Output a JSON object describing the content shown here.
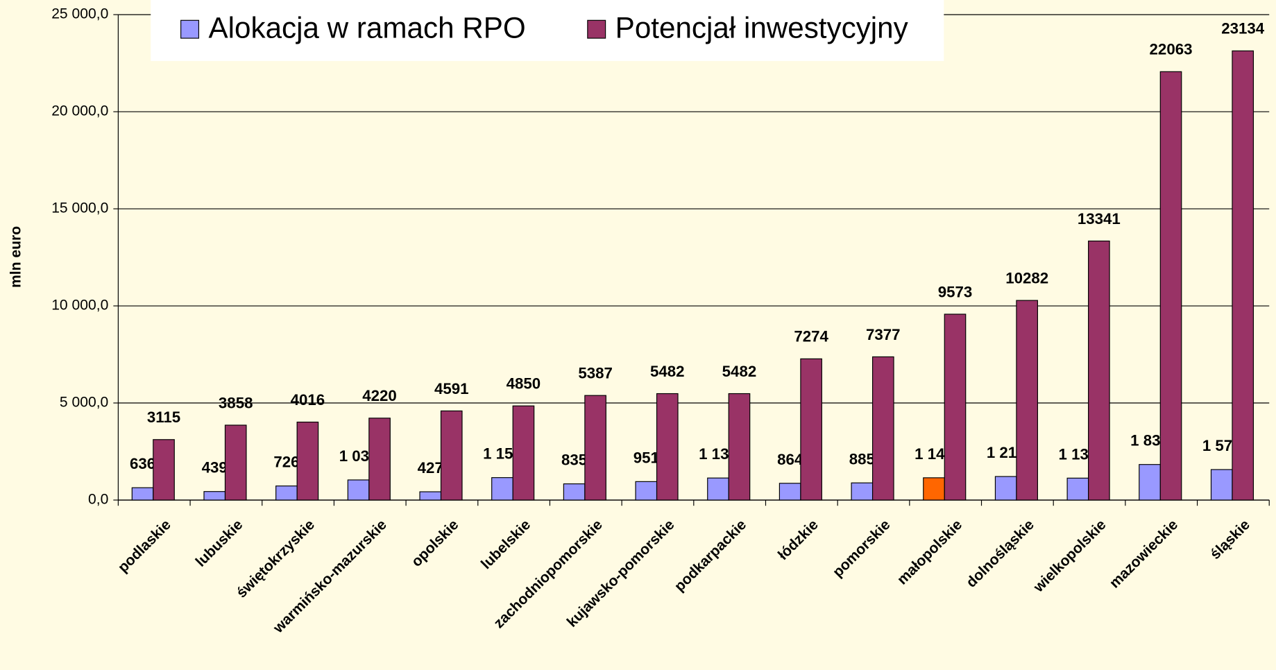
{
  "chart_data": {
    "type": "bar",
    "y_axis_label": "mln euro",
    "categories": [
      "podlaskie",
      "lubuskie",
      "świętokrzyskie",
      "warmińsko-mazurskie",
      "opolskie",
      "lubelskie",
      "zachodniopomorskie",
      "kujawsko-pomorskie",
      "podkarpackie",
      "łódzkie",
      "pomorskie",
      "małopolskie",
      "dolnośląskie",
      "wielkopolskie",
      "mazowieckie",
      "śląskie"
    ],
    "series": [
      {
        "name": "Alokacja w ramach RPO",
        "color": "#9999ff",
        "highlight_index": 11,
        "highlight_color": "#ff6600",
        "values": [
          636,
          439,
          726,
          1037,
          427,
          1156,
          835,
          951,
          1136,
          864,
          885,
          1148,
          1213,
          1130,
          1832,
          1571
        ],
        "value_labels": [
          "636",
          "439",
          "726",
          "1 037",
          "427",
          "1 156",
          "835",
          "951",
          "1 136",
          "864",
          "885",
          "1 148",
          "1 213",
          "1 130",
          "1 832",
          "1 571"
        ]
      },
      {
        "name": "Potencjał inwestycyjny",
        "color": "#993366",
        "values": [
          3115,
          3858,
          4016,
          4220,
          4591,
          4850,
          5387,
          5482,
          5482,
          7274,
          7377,
          9573,
          10282,
          13341,
          22063,
          23134
        ]
      }
    ],
    "ylim": [
      0,
      25000
    ],
    "yticks": [
      {
        "value": 0,
        "label": "0,0"
      },
      {
        "value": 5000,
        "label": "5 000,0"
      },
      {
        "value": 10000,
        "label": "10 000,0"
      },
      {
        "value": 15000,
        "label": "15 000,0"
      },
      {
        "value": 20000,
        "label": "20 000,0"
      },
      {
        "value": 25000,
        "label": "25 000,0"
      }
    ],
    "grid": true,
    "legend": "top"
  }
}
